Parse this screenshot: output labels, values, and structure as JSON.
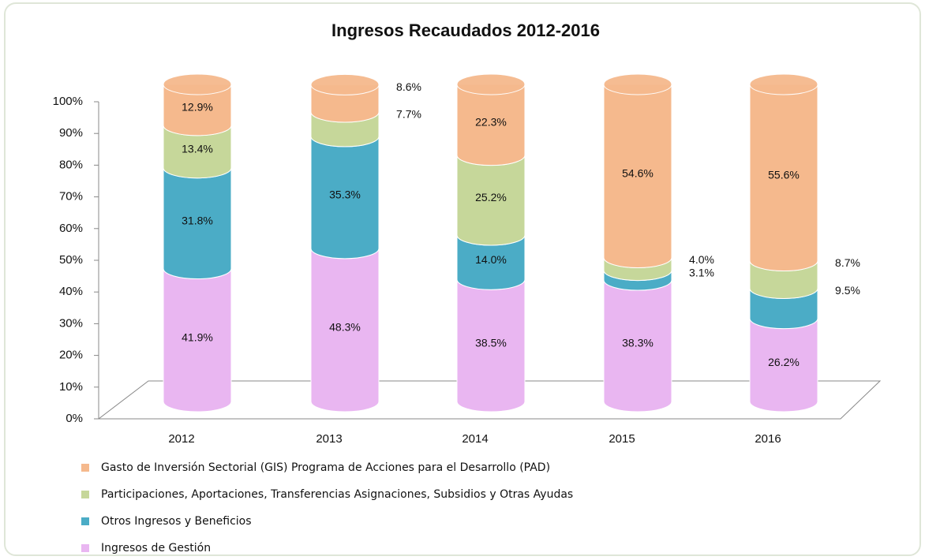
{
  "chart_data": {
    "type": "stacked_bar",
    "title": "Ingresos Recaudados 2012-2016",
    "categories": [
      "2012",
      "2013",
      "2014",
      "2015",
      "2016"
    ],
    "series": [
      {
        "name": "Ingresos de Gestión",
        "color": "#e9b6f1",
        "values": [
          41.9,
          48.3,
          38.5,
          38.3,
          26.2
        ],
        "value_labels": [
          "41.9%",
          "48.3%",
          "38.5%",
          "38.3%",
          "26.2%"
        ]
      },
      {
        "name": "Otros Ingresos y Beneficios",
        "color": "#4bacc6",
        "values": [
          31.8,
          35.3,
          14.0,
          3.1,
          9.5
        ],
        "value_labels": [
          "31.8%",
          "35.3%",
          "14.0%",
          "3.1%",
          "9.5%"
        ]
      },
      {
        "name": "Participaciones, Aportaciones, Transferencias Asignaciones, Subsidios y Otras Ayudas",
        "color": "#c6d79a",
        "values": [
          13.4,
          7.7,
          25.2,
          4.0,
          8.7
        ],
        "value_labels": [
          "13.4%",
          "7.7%",
          "25.2%",
          "4.0%",
          "8.7%"
        ]
      },
      {
        "name": "Gasto de Inversión Sectorial (GIS) Programa de Acciones para el Desarrollo (PAD)",
        "color": "#f5b98d",
        "values": [
          12.9,
          8.6,
          22.3,
          54.6,
          55.6
        ],
        "value_labels": [
          "12.9%",
          "8.6%",
          "22.3%",
          "54.6%",
          "55.6%"
        ]
      }
    ],
    "ylim": [
      0,
      100
    ],
    "yticks": [
      {
        "value": 0,
        "label": "0%"
      },
      {
        "value": 10,
        "label": "10%"
      },
      {
        "value": 20,
        "label": "20%"
      },
      {
        "value": 30,
        "label": "30%"
      },
      {
        "value": 40,
        "label": "40%"
      },
      {
        "value": 50,
        "label": "50%"
      },
      {
        "value": 60,
        "label": "60%"
      },
      {
        "value": 70,
        "label": "70%"
      },
      {
        "value": 80,
        "label": "80%"
      },
      {
        "value": 90,
        "label": "90%"
      },
      {
        "value": 100,
        "label": "100%"
      }
    ]
  }
}
